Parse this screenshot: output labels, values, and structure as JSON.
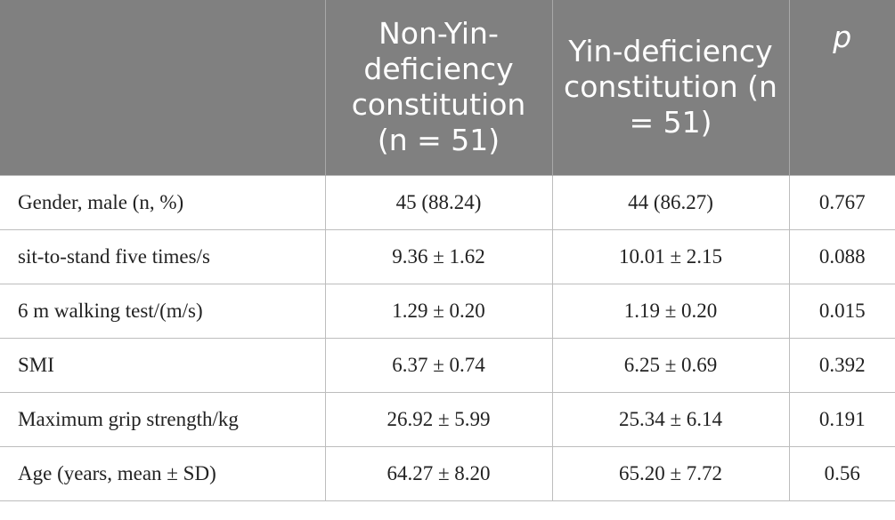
{
  "table": {
    "header": [
      "",
      "Non-Yin-deficiency constitution (n = 51)",
      "Yin-deficiency constitution (n = 51)",
      "p"
    ],
    "rows": [
      [
        "Gender, male (n, %)",
        "45 (88.24)",
        "44 (86.27)",
        "0.767"
      ],
      [
        "sit-to-stand five times/s",
        "9.36 ± 1.62",
        "10.01 ± 2.15",
        "0.088"
      ],
      [
        "6 m walking test/(m/s)",
        "1.29 ± 0.20",
        "1.19 ± 0.20",
        "0.015"
      ],
      [
        "SMI",
        "6.37 ± 0.74",
        "6.25 ± 0.69",
        "0.392"
      ],
      [
        "Maximum grip strength/kg",
        "26.92 ± 5.99",
        "25.34 ± 6.14",
        "0.191"
      ],
      [
        "Age (years, mean ± SD)",
        "64.27 ± 8.20",
        "65.20 ± 7.72",
        "0.56"
      ]
    ]
  }
}
